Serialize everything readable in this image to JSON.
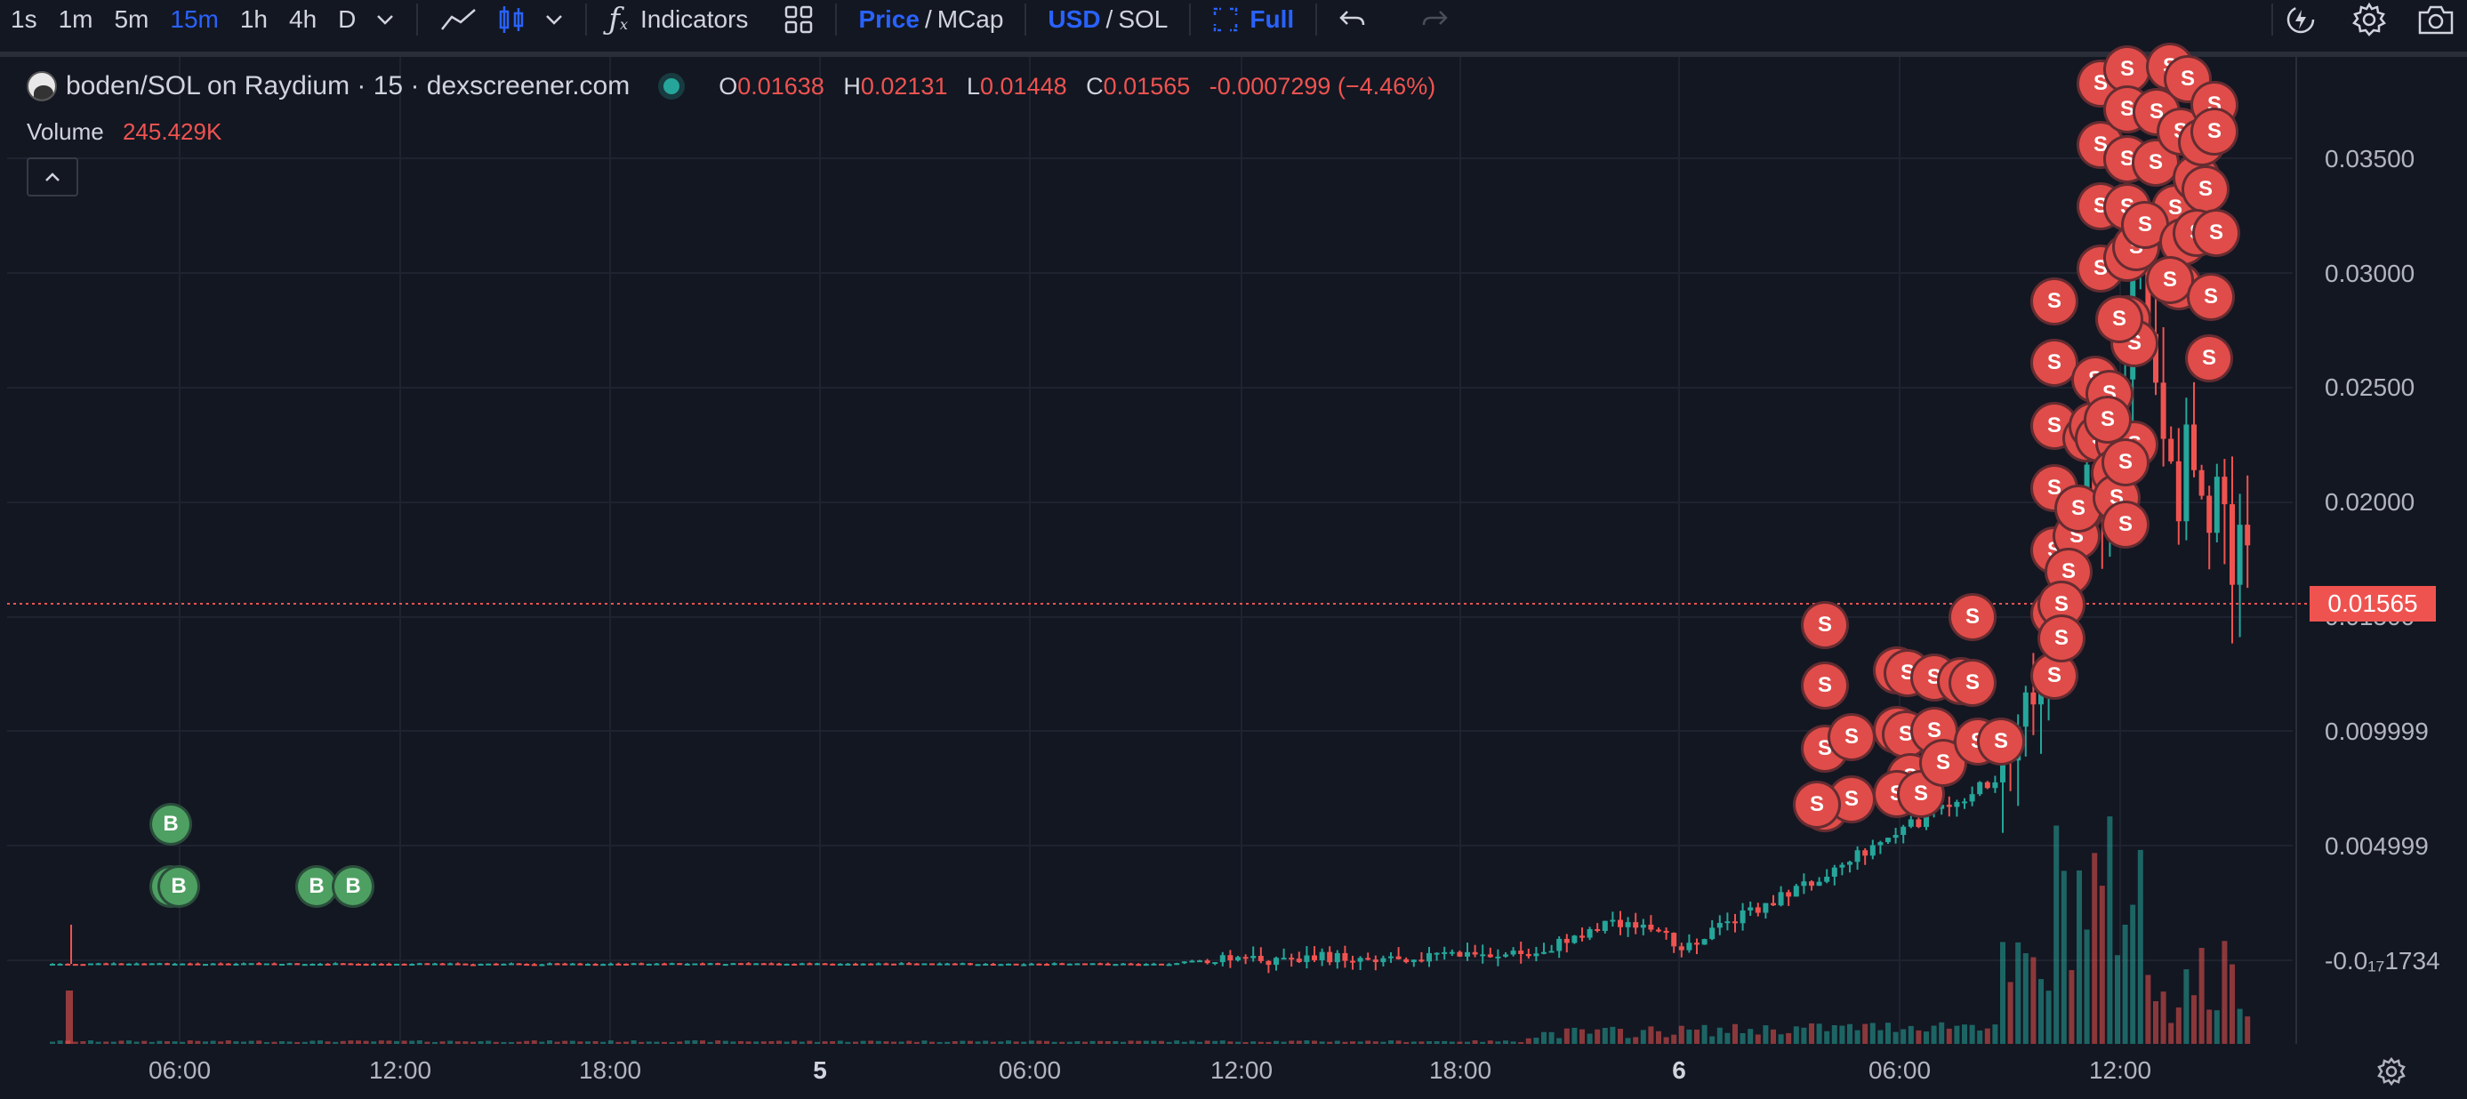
{
  "toolbar": {
    "timeframes": [
      "1s",
      "1m",
      "5m",
      "15m",
      "1h",
      "4h",
      "D"
    ],
    "active_timeframe": "15m",
    "indicators_label": "Indicators",
    "price_label": "Price",
    "mcap_label": "MCap",
    "usd_label": "USD",
    "sol_label": "SOL",
    "slash": "/",
    "full_label": "Full"
  },
  "legend": {
    "symbol": "boden/SOL on Raydium · 15 · dexscreener.com",
    "open_k": "O",
    "open": "0.01638",
    "high_k": "H",
    "high": "0.02131",
    "low_k": "L",
    "low": "0.01448",
    "close_k": "C",
    "close": "0.01565",
    "change": "-0.0007299 (−4.46%)",
    "volume_label": "Volume",
    "volume_value": "245.429K"
  },
  "current_price_tag": "0.01565",
  "y_axis": [
    "0.03500",
    "0.03000",
    "0.02500",
    "0.02000",
    "0.01500",
    "0.009999",
    "0.004999",
    "-0.0₁₇1734"
  ],
  "x_axis": [
    "06:00",
    "12:00",
    "18:00",
    "5",
    "06:00",
    "12:00",
    "18:00",
    "6",
    "06:00",
    "12:00"
  ],
  "markers": {
    "sell_label": "S",
    "buy_label": "B"
  },
  "colors": {
    "up": "#26a69a",
    "down": "#ef5350",
    "background": "#131722",
    "accent": "#2962ff"
  },
  "icons": [
    "chevron-down-icon",
    "line-chart-icon",
    "candlestick-icon",
    "fx-icon",
    "layout-grid-icon",
    "fullscreen-icon",
    "undo-icon",
    "redo-icon",
    "flash-icon",
    "gear-icon",
    "camera-icon",
    "settings-icon"
  ]
}
